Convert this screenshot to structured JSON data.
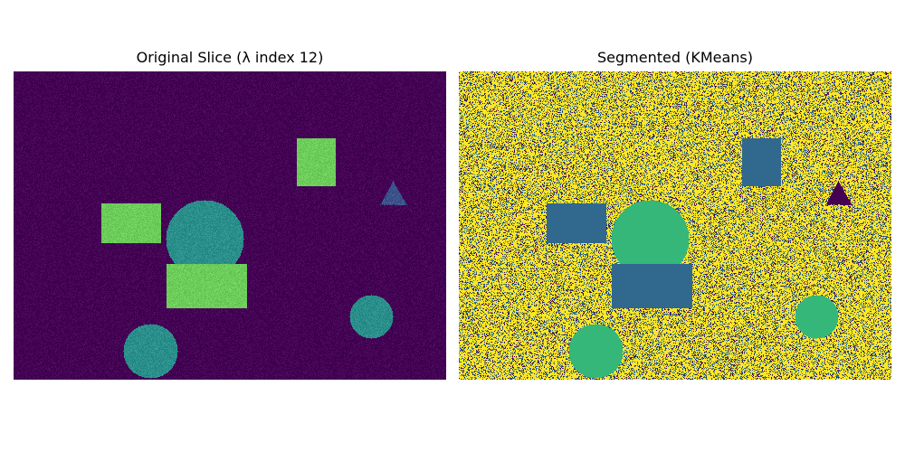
{
  "panels": {
    "left": {
      "title": "Original Slice (λ index 12)"
    },
    "right": {
      "title": "Segmented (KMeans)"
    }
  },
  "colors": {
    "original_background": "#440154",
    "original_rect_bright": "#6ccd5a",
    "original_circle_teal": "#2a8f8a",
    "original_triangle": "#3b528b",
    "segmented_background": "#fde725",
    "segmented_noise_dark": "#31688e",
    "segmented_noise_darkest": "#440154",
    "segmented_rect": "#31688e",
    "segmented_circle": "#35b779",
    "segmented_triangle": "#440154"
  }
}
